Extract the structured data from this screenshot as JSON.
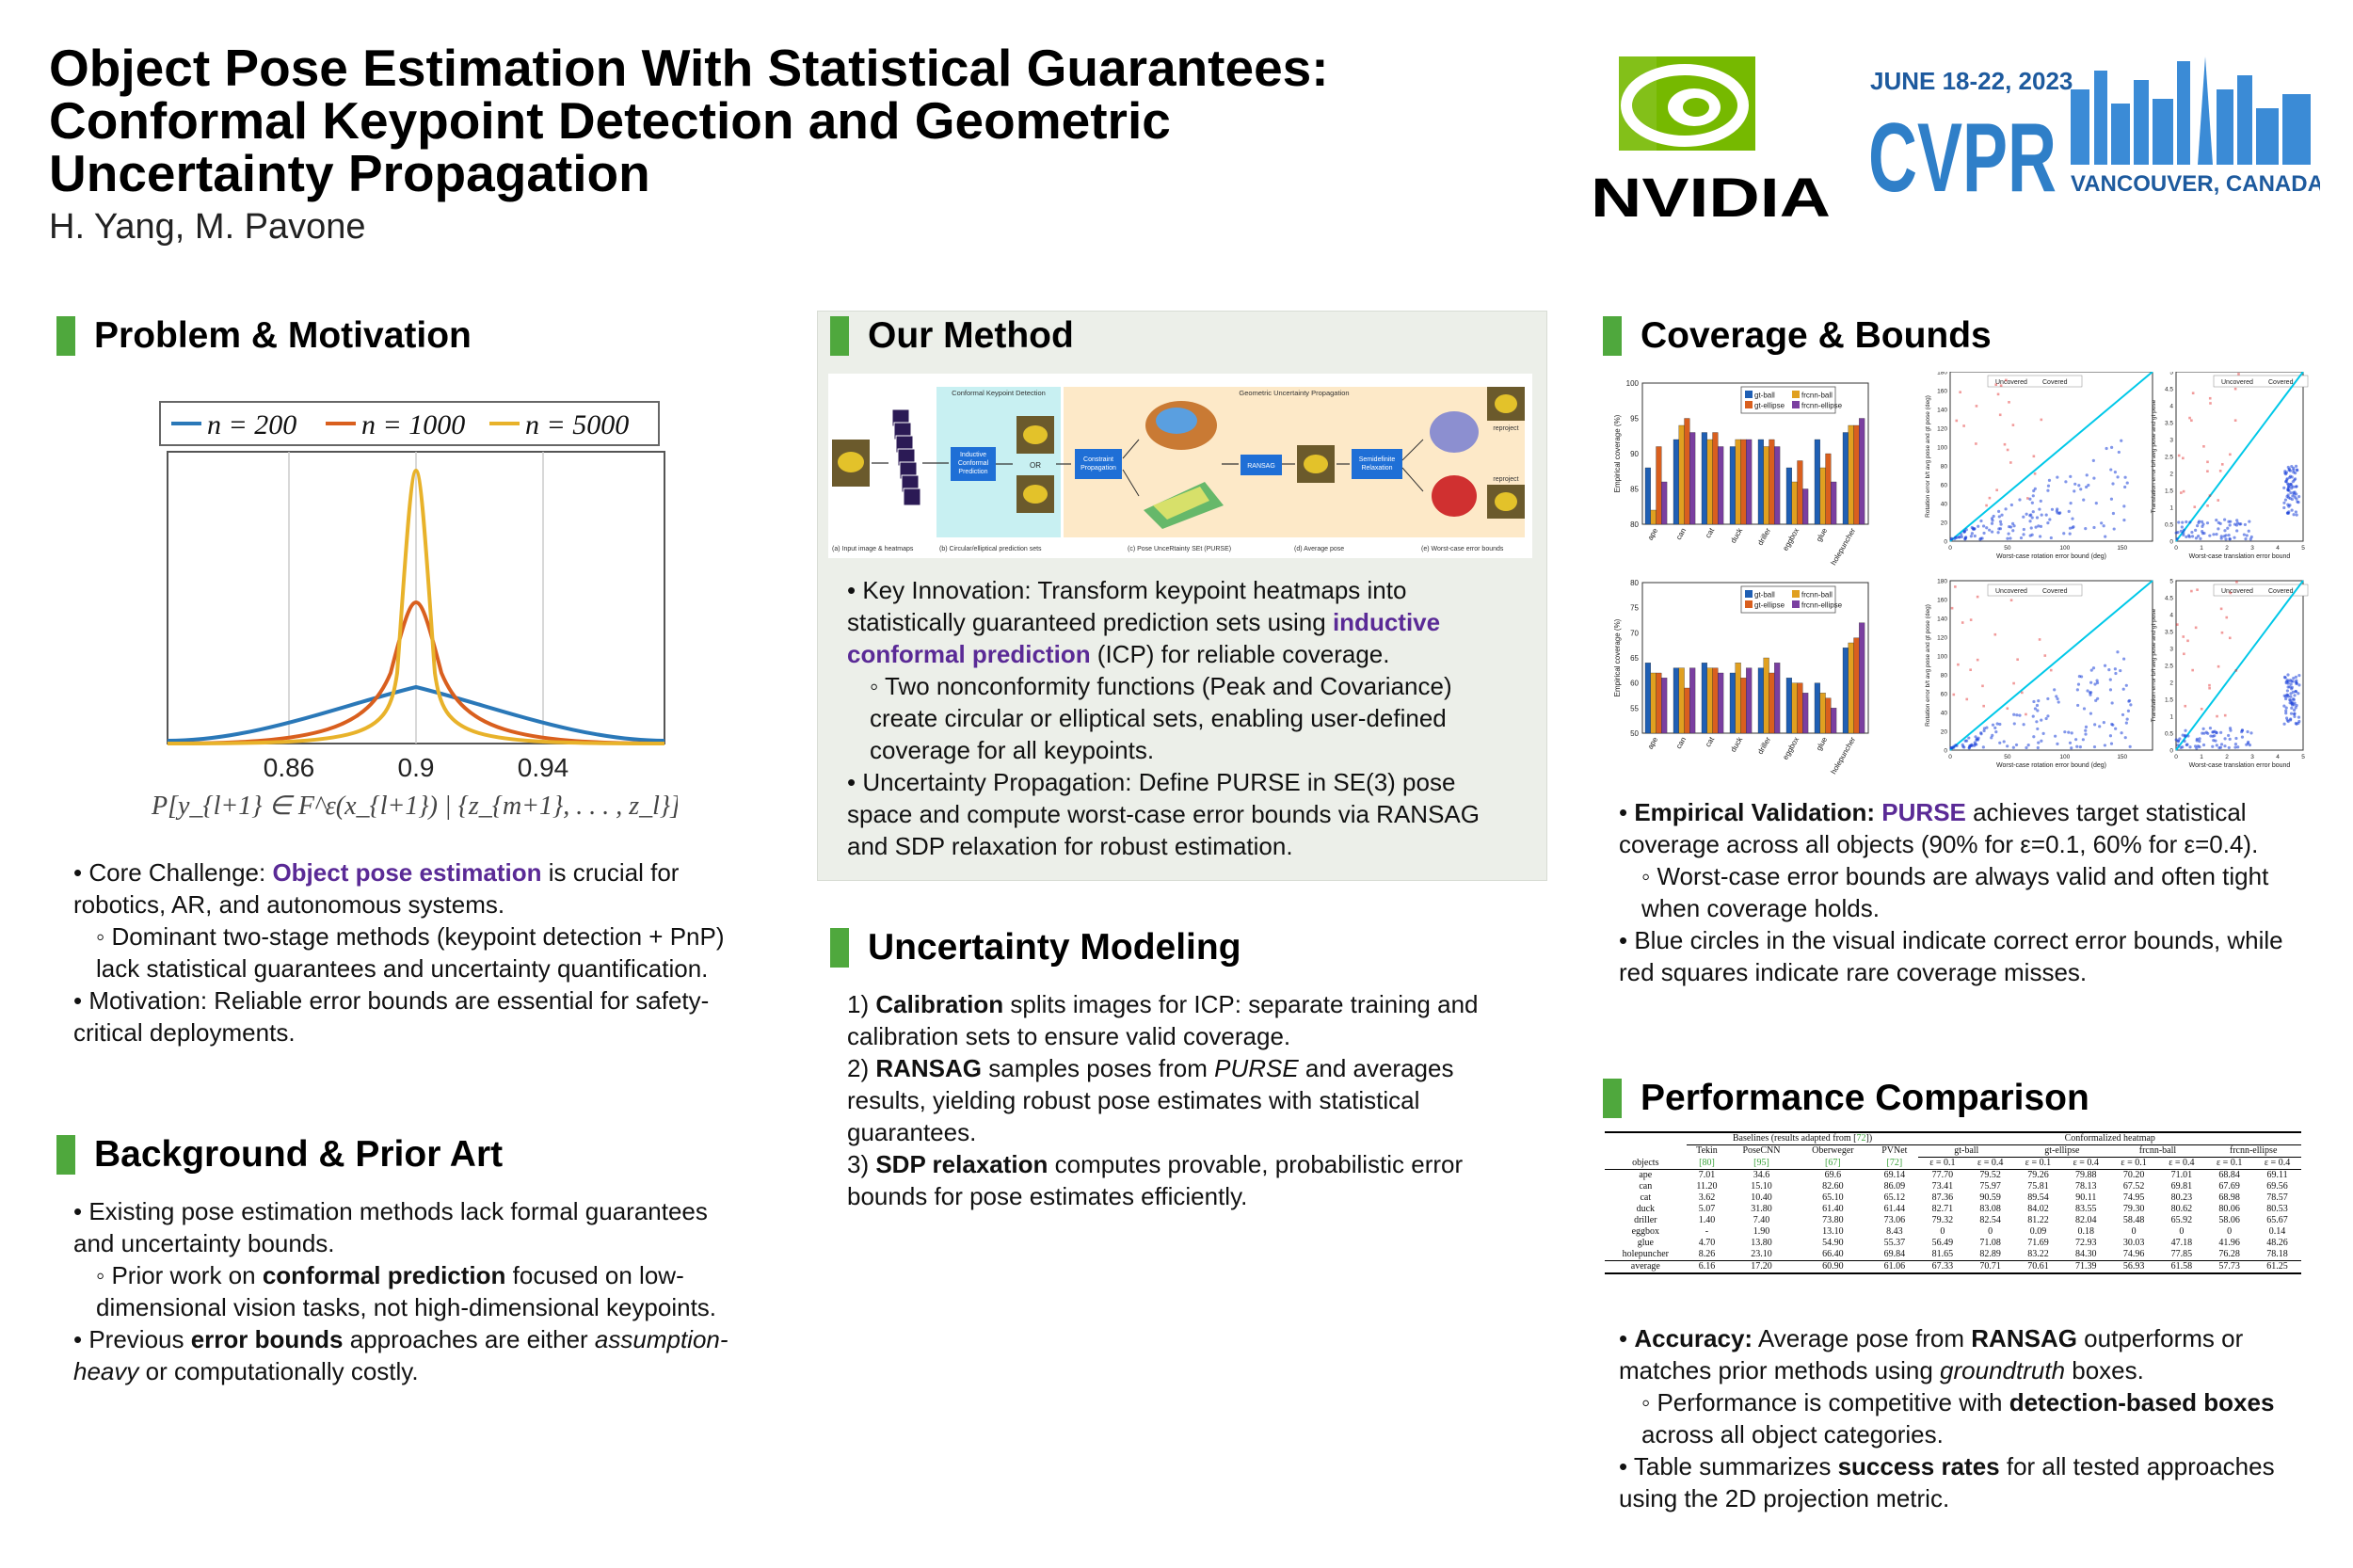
{
  "header": {
    "title_line1": "Object Pose Estimation With Statistical Guarantees:",
    "title_line2": "Conformal Keypoint Detection and Geometric",
    "title_line3": "Uncertainty Propagation",
    "authors": "H. Yang, M. Pavone"
  },
  "logos": {
    "nvidia_text": "NVIDIA",
    "cvpr_dates": "JUNE 18-22, 2023",
    "cvpr_name": "CVPR",
    "cvpr_location": "VANCOUVER, CANADA"
  },
  "colors": {
    "accent_green": "#4fa83d",
    "highlight_purple": "#5a2a96",
    "method_bg": "#ecefe9"
  },
  "sections": {
    "problem": "Problem & Motivation",
    "background": "Background & Prior Art",
    "method": "Our Method",
    "uncertainty": "Uncertainty Modeling",
    "coverage": "Coverage & Bounds",
    "performance": "Performance Comparison"
  },
  "problem_plot": {
    "legend": [
      "n = 200",
      "n = 1000",
      "n = 5000"
    ],
    "xticks": [
      "0.86",
      "0.9",
      "0.94"
    ],
    "xlabel": "P[y_{l+1} ∈ F^ε(x_{l+1}) | {z_{m+1}, . . . , z_l}]"
  },
  "problem_text": {
    "b1_pre": "• Core Challenge: ",
    "b1_em": "Object pose estimation",
    "b1_post": " is crucial for robotics, AR, and autonomous systems.",
    "b1_sub": "◦ Dominant two-stage methods (keypoint detection + PnP) lack statistical guarantees and uncertainty quantification.",
    "b2": "• Motivation: Reliable error bounds are essential for safety-critical deployments."
  },
  "background_text": {
    "b1": "• Existing pose estimation methods lack formal guarantees and uncertainty bounds.",
    "b1_sub_pre": "◦ Prior work on ",
    "b1_sub_em": "conformal prediction",
    "b1_sub_post": " focused on low-dimensional vision tasks, not high-dimensional keypoints.",
    "b2_pre": "• Previous ",
    "b2_em": "error bounds",
    "b2_mid": " approaches are either ",
    "b2_it": "assumption-heavy",
    "b2_post": " or computationally costly."
  },
  "method_fig": {
    "stage1": "Conformal Keypoint Detection",
    "stage2": "Geometric Uncertainty Propagation",
    "box_icp": "Inductive Conformal Prediction",
    "box_or": "OR",
    "box_cp": "Constraint Propagation",
    "box_ransag": "RANSAG",
    "box_sdp": "Semidefinite Relaxation",
    "reproject1": "reproject",
    "reproject2": "reproject",
    "cap_a": "(a) Input image & heatmaps",
    "cap_b": "(b) Circular/elliptical prediction sets",
    "cap_c": "(c) Pose UnceRtainty SEt (PURSE)",
    "cap_d": "(d) Average pose",
    "cap_e": "(e) Worst-case error bounds"
  },
  "method_text": {
    "b1_pre": "• Key Innovation: Transform keypoint heatmaps into statistically guaranteed prediction sets using ",
    "b1_em": "inductive conformal prediction",
    "b1_post": " (ICP) for reliable coverage.",
    "b1_sub": "◦ Two nonconformity functions (Peak and Covariance) create circular or elliptical sets, enabling user-defined coverage for all keypoints.",
    "b2": "• Uncertainty Propagation: Define PURSE in SE(3) pose space and compute worst-case error bounds via RANSAG and SDP relaxation for robust estimation."
  },
  "uncertainty_text": {
    "i1_num": "1) ",
    "i1_em": "Calibration",
    "i1_post": " splits images for ICP: separate training and calibration sets to ensure valid coverage.",
    "i2_num": "2) ",
    "i2_em": "RANSAG",
    "i2_mid": " samples poses from ",
    "i2_it": "PURSE",
    "i2_post": " and averages results, yielding robust pose estimates with statistical guarantees.",
    "i3_num": "3) ",
    "i3_em": "SDP relaxation",
    "i3_post": " computes provable, probabilistic error bounds for pose estimates efficiently."
  },
  "coverage_fig": {
    "bar_ylabel": "Empirical coverage (%)",
    "objects": [
      "ape",
      "can",
      "cat",
      "duck",
      "driller",
      "eggbox",
      "glue",
      "holepuncher"
    ],
    "legend": [
      "gt-ball",
      "frcnn-ball",
      "gt-ellipse",
      "frcnn-ellipse"
    ],
    "bar_colors": [
      "#1f5fb4",
      "#e0a020",
      "#d95f1e",
      "#7a3fa0"
    ],
    "top_yticks": [
      "100",
      "95",
      "90",
      "85",
      "80"
    ],
    "bot_yticks": [
      "80",
      "75",
      "70",
      "65",
      "60",
      "55",
      "50"
    ],
    "top_values": {
      "gt-ball": [
        88,
        92,
        93,
        91,
        92,
        88,
        92,
        93
      ],
      "frcnn-ball": [
        82,
        94,
        92,
        92,
        91,
        86,
        88,
        94
      ],
      "gt-ellipse": [
        91,
        95,
        93,
        92,
        92,
        89,
        90,
        94
      ],
      "frcnn-ellipse": [
        86,
        93,
        91,
        92,
        91,
        85,
        86,
        95
      ]
    },
    "bot_values": {
      "gt-ball": [
        64,
        63,
        64,
        62,
        63,
        61,
        60,
        67
      ],
      "frcnn-ball": [
        62,
        63,
        63,
        64,
        65,
        60,
        58,
        68
      ],
      "gt-ellipse": [
        62,
        59,
        63,
        61,
        62,
        60,
        57,
        69
      ],
      "frcnn-ellipse": [
        61,
        63,
        62,
        63,
        64,
        58,
        55,
        72
      ]
    },
    "rot_xlabel": "Worst-case rotation error bound (deg)",
    "rot_ylabel": "Rotation error b/t avg pose and gt pose (deg)",
    "rot_yticks": [
      "180",
      "160",
      "140",
      "120",
      "100",
      "80",
      "60",
      "40",
      "20",
      "0"
    ],
    "rot_xticks": [
      "0",
      "50",
      "100",
      "150"
    ],
    "trans_xlabel": "Worst-case translation error bound",
    "trans_ylabel": "Translation error b/t avg pose and gt pose",
    "trans_yticks": [
      "5",
      "4.5",
      "4",
      "3.5",
      "3",
      "2.5",
      "2",
      "1.5",
      "1",
      "0.5",
      "0"
    ],
    "trans_xticks": [
      "0",
      "1",
      "2",
      "3",
      "4",
      "5"
    ],
    "legend_uncovered": "Uncovered",
    "legend_covered": "Covered"
  },
  "coverage_text": {
    "b1_em": "Empirical Validation: ",
    "b1_purple": "PURSE",
    "b1_post": " achieves target statistical coverage across all objects (90% for ε=0.1, 60% for ε=0.4).",
    "b1_sub": "◦ Worst-case error bounds are always valid and often tight when coverage holds.",
    "b2": "• Blue circles in the visual indicate correct error bounds, while red squares indicate rare coverage misses."
  },
  "perf_table": {
    "group_baselines_pre": "Baselines (results adapted from [",
    "group_baselines_ref": "72",
    "group_baselines_post": "])",
    "group_conf": "Conformalized heatmap",
    "baselines": [
      "Tekin",
      "PoseCNN",
      "Oberweger",
      "PVNet"
    ],
    "baseline_refs": [
      "[80]",
      "[95]",
      "[67]",
      "[72]"
    ],
    "methods": [
      "gt-ball",
      "gt-ellipse",
      "frcnn-ball",
      "frcnn-ellipse"
    ],
    "eps": [
      "ε = 0.1",
      "ε = 0.4",
      "ε = 0.1",
      "ε = 0.4",
      "ε = 0.1",
      "ε = 0.4",
      "ε = 0.1",
      "ε = 0.4"
    ],
    "objects_label": "objects",
    "rows": [
      [
        "ape",
        "7.01",
        "34.6",
        "69.6",
        "69.14",
        "77.70",
        "79.52",
        "79.26",
        "79.88",
        "70.20",
        "71.01",
        "68.84",
        "69.11"
      ],
      [
        "can",
        "11.20",
        "15.10",
        "82.60",
        "86.09",
        "73.41",
        "75.97",
        "75.81",
        "78.13",
        "67.52",
        "69.81",
        "67.69",
        "69.56"
      ],
      [
        "cat",
        "3.62",
        "10.40",
        "65.10",
        "65.12",
        "87.36",
        "90.59",
        "89.54",
        "90.11",
        "74.95",
        "80.23",
        "68.98",
        "78.57"
      ],
      [
        "duck",
        "5.07",
        "31.80",
        "61.40",
        "61.44",
        "82.71",
        "83.08",
        "84.02",
        "83.55",
        "79.30",
        "80.62",
        "80.06",
        "80.53"
      ],
      [
        "driller",
        "1.40",
        "7.40",
        "73.80",
        "73.06",
        "79.32",
        "82.54",
        "81.22",
        "82.04",
        "58.48",
        "65.92",
        "58.06",
        "65.67"
      ],
      [
        "eggbox",
        "-",
        "1.90",
        "13.10",
        "8.43",
        "0",
        "0",
        "0.09",
        "0.18",
        "0",
        "0",
        "0",
        "0.14"
      ],
      [
        "glue",
        "4.70",
        "13.80",
        "54.90",
        "55.37",
        "56.49",
        "71.08",
        "71.69",
        "72.93",
        "30.03",
        "47.18",
        "41.96",
        "48.26"
      ],
      [
        "holepuncher",
        "8.26",
        "23.10",
        "66.40",
        "69.84",
        "81.65",
        "82.89",
        "83.22",
        "84.30",
        "74.96",
        "77.85",
        "76.28",
        "78.18"
      ]
    ],
    "avg_row": [
      "average",
      "6.16",
      "17.20",
      "60.90",
      "61.06",
      "67.33",
      "70.71",
      "70.61",
      "71.39",
      "56.93",
      "61.58",
      "57.73",
      "61.25"
    ]
  },
  "performance_text": {
    "b1_em": "Accuracy:",
    "b1_mid": " Average pose from ",
    "b1_em2": "RANSAG",
    "b1_mid2": " outperforms or matches prior methods using ",
    "b1_it": "groundtruth",
    "b1_post": " boxes.",
    "b1_sub_pre": "◦ Performance is competitive with ",
    "b1_sub_em": "detection-based boxes",
    "b1_sub_post": " across all object categories.",
    "b2_pre": "• Table summarizes ",
    "b2_em": "success rates",
    "b2_post": " for all tested approaches using the 2D projection metric."
  }
}
